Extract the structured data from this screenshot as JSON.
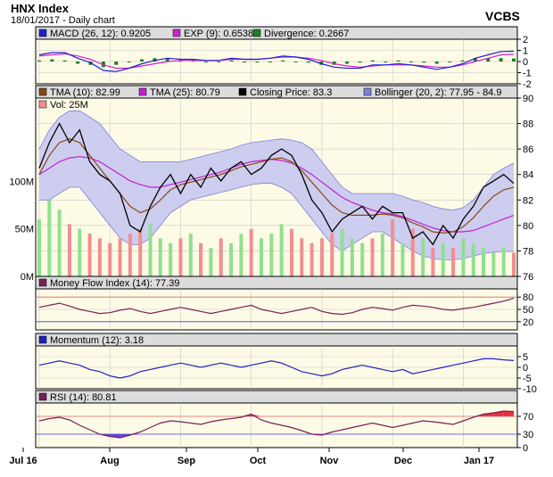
{
  "header": {
    "title": "HNX Index",
    "subtitle": "18/01/2017 - Daily chart",
    "brand": "VCBS"
  },
  "colors": {
    "panel_bg": "#fdfbe6",
    "grid": "#c8c8c8",
    "ref_red": "#e06060",
    "ref_blue": "#4040e0",
    "bollinger_fill": "#c8c8f0",
    "bollinger_edge": "#8080d8",
    "close": "#000000",
    "tma10": "#8b4513",
    "tma25": "#c020d0",
    "macd": "#2020d0",
    "exp": "#d020d0",
    "divergence": "#208020",
    "mfi": "#7a1f5c",
    "momentum": "#2020c0",
    "rsi": "#7a1f5c",
    "rsi_over": "#e83040",
    "rsi_under": "#6a40d8",
    "vol_up": "#90e090",
    "vol_down": "#f09090"
  },
  "chart_data": {
    "type": "line",
    "x_axis": {
      "ticks": [
        "Jul 16",
        "Aug",
        "Sep",
        "Oct",
        "Nov",
        "Dec",
        "Jan 17"
      ]
    },
    "macd_panel": {
      "legend": [
        {
          "label": "MACD (26, 12): 0.9205",
          "color": "#2020d0"
        },
        {
          "label": "EXP (9): 0.6538",
          "color": "#d020d0"
        },
        {
          "label": "Divergence: 0.2667",
          "color": "#208020"
        }
      ],
      "ylim": [
        -2,
        2
      ],
      "y_ticks": [
        "2",
        "1",
        "0",
        "-1",
        "-2"
      ],
      "series": [
        {
          "name": "MACD (26, 12)",
          "values": [
            0.6,
            0.8,
            0.8,
            0.3,
            -0.1,
            -0.8,
            -0.9,
            -0.6,
            -0.2,
            0.1,
            0.3,
            0.2,
            0.2,
            0.1,
            0.1,
            0.3,
            0.2,
            0.2,
            0.3,
            0.5,
            0.4,
            0.2,
            -0.2,
            -0.5,
            -0.6,
            -0.6,
            -0.3,
            -0.3,
            -0.2,
            -0.3,
            -0.5,
            -0.7,
            -0.5,
            -0.2,
            0.3,
            0.6,
            0.9,
            0.92
          ]
        },
        {
          "name": "EXP (9)",
          "values": [
            0.5,
            0.6,
            0.7,
            0.5,
            0.2,
            -0.3,
            -0.6,
            -0.6,
            -0.4,
            -0.2,
            0.0,
            0.1,
            0.1,
            0.1,
            0.1,
            0.2,
            0.2,
            0.2,
            0.3,
            0.4,
            0.4,
            0.3,
            0.1,
            -0.2,
            -0.4,
            -0.5,
            -0.4,
            -0.3,
            -0.3,
            -0.3,
            -0.4,
            -0.5,
            -0.5,
            -0.3,
            0.0,
            0.3,
            0.6,
            0.65
          ]
        }
      ]
    },
    "price_panel": {
      "legend": [
        {
          "label": "TMA (10): 82.99",
          "color": "#8b4513"
        },
        {
          "label": "TMA (25): 80.79",
          "color": "#c020d0"
        },
        {
          "label": "Closing Price: 83.3",
          "color": "#000000"
        },
        {
          "label": "Bollinger (20, 2): 77.95 - 84.9",
          "color": "#8080d8"
        }
      ],
      "volume_legend": {
        "label": "Vol: 25M",
        "color": "#f09090"
      },
      "ylim": [
        76,
        90
      ],
      "y_ticks": [
        "90",
        "88",
        "86",
        "84",
        "82",
        "80",
        "78",
        "76"
      ],
      "volume_ticks": [
        "100M",
        "50M",
        "0M"
      ],
      "volume_max": 150,
      "series": [
        {
          "name": "Closing Price",
          "values": [
            84.5,
            86.5,
            88.0,
            86.5,
            87.5,
            85.0,
            84.0,
            83.5,
            82.5,
            80.0,
            79.5,
            81.5,
            83.0,
            84.0,
            82.5,
            84.0,
            83.0,
            84.5,
            83.5,
            84.5,
            85.0,
            84.0,
            84.5,
            85.5,
            86.0,
            85.5,
            84.0,
            82.0,
            81.0,
            79.5,
            80.5,
            81.0,
            81.5,
            80.5,
            81.5,
            81.0,
            81.0,
            79.0,
            79.5,
            78.5,
            80.0,
            79.0,
            80.5,
            81.5,
            83.0,
            83.5,
            84.0,
            83.3
          ]
        },
        {
          "name": "TMA (10)",
          "values": [
            84.0,
            85.5,
            86.5,
            86.8,
            86.5,
            85.5,
            84.5,
            83.5,
            82.5,
            81.5,
            81.0,
            81.3,
            82.0,
            82.8,
            83.2,
            83.4,
            83.6,
            83.8,
            84.0,
            84.3,
            84.6,
            84.8,
            85.0,
            85.2,
            85.3,
            85.0,
            84.3,
            83.4,
            82.5,
            81.6,
            81.0,
            80.8,
            80.8,
            80.8,
            80.9,
            80.8,
            80.6,
            80.2,
            79.9,
            79.5,
            79.4,
            79.5,
            79.9,
            80.6,
            81.5,
            82.3,
            82.8,
            82.99
          ]
        },
        {
          "name": "TMA (25)",
          "values": [
            84.0,
            84.5,
            85.0,
            85.3,
            85.4,
            85.3,
            85.0,
            84.5,
            84.0,
            83.5,
            83.2,
            83.0,
            83.0,
            83.2,
            83.4,
            83.6,
            83.8,
            84.0,
            84.2,
            84.5,
            84.8,
            85.0,
            85.1,
            85.2,
            85.1,
            84.9,
            84.5,
            84.0,
            83.4,
            82.8,
            82.2,
            81.8,
            81.5,
            81.2,
            81.0,
            80.9,
            80.7,
            80.4,
            80.1,
            79.8,
            79.6,
            79.5,
            79.5,
            79.6,
            79.9,
            80.2,
            80.5,
            80.79
          ]
        },
        {
          "name": "Bollinger upper",
          "values": [
            86.0,
            87.5,
            88.5,
            89.0,
            89.0,
            88.5,
            88.0,
            87.0,
            86.0,
            85.5,
            85.0,
            85.0,
            85.0,
            85.0,
            85.0,
            85.2,
            85.4,
            85.6,
            85.8,
            86.0,
            86.3,
            86.5,
            86.6,
            86.7,
            86.8,
            86.7,
            86.5,
            86.0,
            85.0,
            84.0,
            83.0,
            82.5,
            82.5,
            82.5,
            82.5,
            82.5,
            82.3,
            82.0,
            81.8,
            81.5,
            81.3,
            81.2,
            81.4,
            82.0,
            83.0,
            84.0,
            84.5,
            84.9
          ]
        },
        {
          "name": "Bollinger lower",
          "values": [
            82.0,
            82.0,
            82.5,
            83.0,
            83.0,
            82.0,
            81.0,
            80.0,
            79.0,
            78.5,
            78.5,
            79.0,
            80.0,
            81.0,
            81.5,
            82.0,
            82.2,
            82.4,
            82.6,
            82.8,
            83.0,
            83.2,
            83.3,
            83.3,
            83.0,
            82.5,
            81.5,
            80.5,
            79.5,
            78.5,
            78.0,
            78.5,
            79.0,
            79.5,
            79.5,
            79.0,
            78.5,
            78.0,
            77.6,
            77.4,
            77.3,
            77.3,
            77.4,
            77.6,
            77.8,
            77.9,
            77.95,
            77.95
          ]
        }
      ],
      "volume_series": {
        "name": "Vol",
        "values": [
          60,
          80,
          70,
          55,
          50,
          45,
          40,
          35,
          40,
          45,
          50,
          55,
          40,
          35,
          40,
          45,
          35,
          30,
          40,
          35,
          45,
          50,
          40,
          45,
          55,
          50,
          40,
          35,
          40,
          45,
          50,
          40,
          35,
          40,
          45,
          60,
          35,
          50,
          40,
          30,
          35,
          30,
          40,
          35,
          30,
          25,
          30,
          25
        ]
      }
    },
    "mfi_panel": {
      "legend": {
        "label": "Money Flow Index (14): 77.39",
        "color": "#7a1f5c"
      },
      "ylim": [
        0,
        100
      ],
      "y_ticks": [
        "80",
        "50",
        "20"
      ],
      "series": [
        {
          "name": "Money Flow Index (14)",
          "values": [
            55,
            60,
            65,
            58,
            50,
            45,
            40,
            42,
            48,
            52,
            45,
            40,
            45,
            50,
            55,
            50,
            45,
            40,
            45,
            50,
            55,
            60,
            50,
            45,
            40,
            45,
            50,
            55,
            45,
            40,
            38,
            42,
            50,
            55,
            52,
            48,
            55,
            60,
            58,
            55,
            50,
            48,
            52,
            55,
            60,
            65,
            70,
            77.39
          ]
        }
      ]
    },
    "momentum_panel": {
      "legend": {
        "label": "Momentum (12): 3.18",
        "color": "#2020c0"
      },
      "ylim": [
        -10,
        10
      ],
      "y_ticks": [
        "5",
        "0",
        "-5",
        "-10"
      ],
      "series": [
        {
          "name": "Momentum (12)",
          "values": [
            1,
            2,
            3,
            2,
            1,
            -1,
            -2,
            -4,
            -5,
            -4,
            -2,
            -1,
            0,
            1,
            2,
            1,
            0,
            1,
            2,
            1,
            0,
            1,
            2,
            3,
            2,
            0,
            -2,
            -3,
            -4,
            -3,
            -1,
            0,
            1,
            0,
            -1,
            -2,
            -1,
            -3,
            -2,
            -1,
            0,
            1,
            2,
            3,
            4,
            4,
            3.5,
            3.18
          ]
        }
      ]
    },
    "rsi_panel": {
      "legend": {
        "label": "RSI (14): 80.81",
        "color": "#7a1f5c"
      },
      "ylim": [
        0,
        100
      ],
      "y_ticks": [
        "70",
        "30",
        "0"
      ],
      "series": [
        {
          "name": "RSI (14)",
          "values": [
            60,
            65,
            68,
            62,
            50,
            40,
            30,
            25,
            22,
            28,
            35,
            45,
            55,
            60,
            58,
            55,
            52,
            58,
            62,
            65,
            68,
            75,
            62,
            55,
            50,
            45,
            38,
            30,
            28,
            35,
            40,
            45,
            50,
            55,
            50,
            45,
            50,
            55,
            60,
            58,
            55,
            52,
            60,
            68,
            75,
            78,
            82,
            80.81
          ]
        }
      ]
    }
  }
}
